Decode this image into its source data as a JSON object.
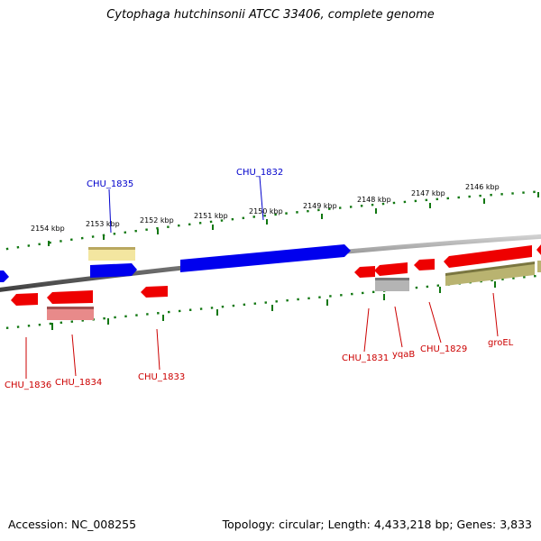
{
  "title": "Cytophaga hutchinsonii ATCC 33406, complete genome",
  "footer": {
    "accession": "Accession: NC_008255",
    "topology": "Topology: circular; Length: 4,433,218 bp; Genes: 3,833"
  },
  "scale": {
    "unit": "kbp",
    "ticks": [
      {
        "kbp": 2154,
        "label": "2154 kbp"
      },
      {
        "kbp": 2153,
        "label": "2153 kbp"
      },
      {
        "kbp": 2152,
        "label": "2152 kbp"
      },
      {
        "kbp": 2151,
        "label": "2151 kbp"
      },
      {
        "kbp": 2150,
        "label": "2150 kbp"
      },
      {
        "kbp": 2149,
        "label": "2149 kbp"
      },
      {
        "kbp": 2148,
        "label": "2148 kbp"
      },
      {
        "kbp": 2147,
        "label": "2147 kbp"
      },
      {
        "kbp": 2146,
        "label": "2146 kbp"
      }
    ]
  },
  "colors": {
    "forward_gene": "#0000ee",
    "reverse_gene": "#ee0000",
    "trna_forward": "#f0e08a",
    "reverse_pink": "#e88a8a",
    "reverse_gray": "#b0b0b0",
    "reverse_olive": "#b5b070",
    "scale_ticks": "#117711",
    "backbone": "#808080"
  },
  "gene_labels": [
    {
      "name": "CHU_1835",
      "strand": "forward"
    },
    {
      "name": "CHU_1832",
      "strand": "forward"
    },
    {
      "name": "CHU_1836",
      "strand": "reverse"
    },
    {
      "name": "CHU_1834",
      "strand": "reverse"
    },
    {
      "name": "CHU_1833",
      "strand": "reverse"
    },
    {
      "name": "CHU_1831",
      "strand": "reverse"
    },
    {
      "name": "yqaB",
      "strand": "reverse"
    },
    {
      "name": "CHU_1829",
      "strand": "reverse"
    },
    {
      "name": "groEL",
      "strand": "reverse"
    }
  ]
}
